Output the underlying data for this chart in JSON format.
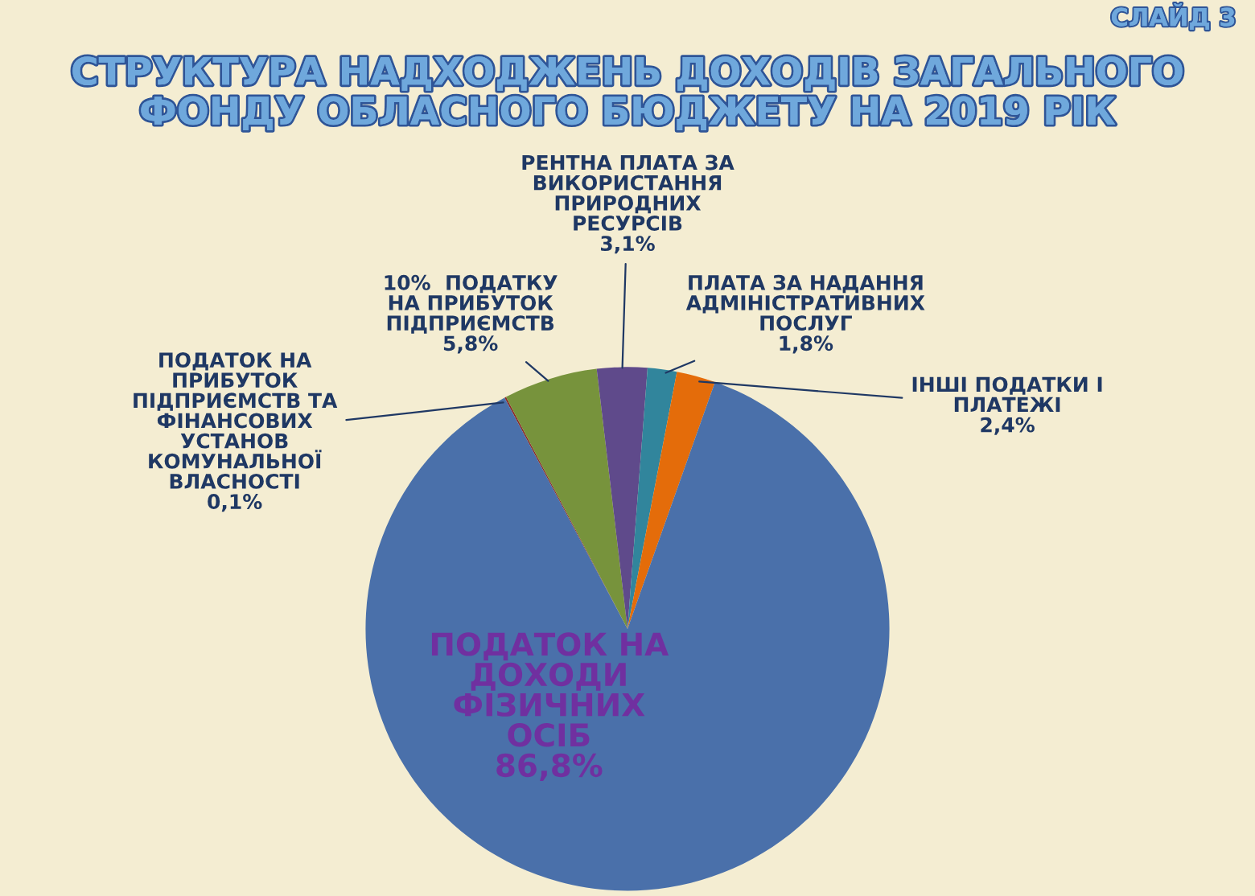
{
  "chart_data": {
    "type": "pie",
    "title": "СТРУКТУРА НАДХОДЖЕНЬ ДОХОДІВ ЗАГАЛЬНОГО\nФОНДУ ОБЛАСНОГО БЮДЖЕТУ НА 2019 РІК",
    "categories": [
      "ПОДАТОК НА\nПРИБУТОК\nПІДПРИЄМСТВ ТА\nФІНАНСОВИХ\nУСТАНОВ\nКОМУНАЛЬНОЇ\nВЛАСНОСТІ",
      "10%  ПОДАТКУ\nНА ПРИБУТОК\nПІДПРИЄМСТВ",
      "РЕНТНА ПЛАТА ЗА\nВИКОРИСТАННЯ\nПРИРОДНИХ\nРЕСУРСІВ",
      "ПЛАТА ЗА НАДАННЯ\nАДМІНІСТРАТИВНИХ\nПОСЛУГ",
      "ІНШІ ПОДАТКИ І\nПЛАТЕЖІ",
      "ПОДАТОК НА\nДОХОДИ\nФІЗИЧНИХ\nОСІБ"
    ],
    "values": [
      0.1,
      5.8,
      3.1,
      1.8,
      2.4,
      86.8
    ],
    "value_labels": [
      "0,1%",
      "5,8%",
      "3,1%",
      "1,8%",
      "2,4%",
      "86,8%"
    ],
    "colors": [
      "#8b2a2a",
      "#77933c",
      "#5f4a8b",
      "#31859c",
      "#e46c0a",
      "#4a70aa"
    ],
    "annotations": [
      "СЛАЙД 3"
    ]
  }
}
